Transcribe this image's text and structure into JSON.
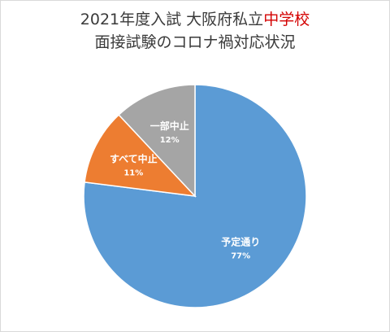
{
  "chart_data": {
    "type": "pie",
    "title_line1_prefix": "2021年度入試  大阪府私立",
    "title_line1_accent": "中学校",
    "title_line2": "面接試験のコロナ禍対応状況",
    "categories": [
      "予定通り",
      "すべて中止",
      "一部中止"
    ],
    "values": [
      77,
      11,
      12
    ],
    "value_labels": [
      "77%",
      "11%",
      "12%"
    ],
    "start_angle_deg": 0,
    "direction": "clockwise",
    "legend": "none",
    "colors": [
      "#5b9bd5",
      "#ed7d31",
      "#a5a5a5"
    ],
    "accent_title_color": "#d40000"
  }
}
